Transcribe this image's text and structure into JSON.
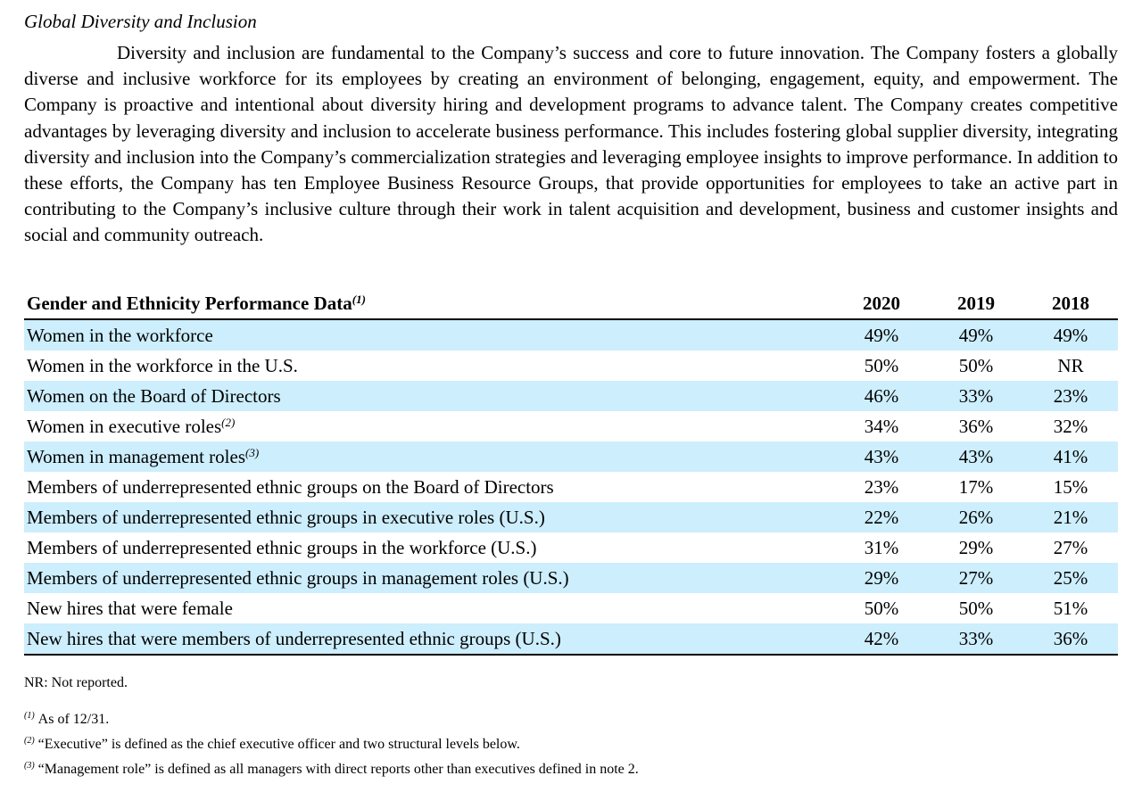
{
  "section_title": "Global Diversity and Inclusion",
  "paragraph": "Diversity and inclusion are fundamental to the Company’s success and core to future innovation. The Company fosters a globally diverse and inclusive workforce for its employees by creating an environment of belonging, engagement, equity, and empowerment. The Company is proactive and intentional about diversity hiring and development programs to advance talent. The Company creates competitive advantages by leveraging diversity and inclusion to accelerate business performance. This includes fostering global supplier diversity, integrating diversity and inclusion into the Company’s commercialization strategies and leveraging employee insights to improve performance. In addition to these efforts, the Company has ten Employee Business Resource Groups, that provide opportunities for employees to take an active part in contributing to the Company’s inclusive culture through their work in talent acquisition and development, business and customer insights and social and community outreach.",
  "table": {
    "header": {
      "label": "Gender and Ethnicity Performance Data",
      "footnote": "(1)",
      "years": [
        "2020",
        "2019",
        "2018"
      ]
    },
    "rows": [
      {
        "label": "Women in the workforce",
        "footnote": "",
        "values": [
          "49%",
          "49%",
          "49%"
        ]
      },
      {
        "label": "Women in the workforce in the U.S.",
        "footnote": "",
        "values": [
          "50%",
          "50%",
          "NR"
        ]
      },
      {
        "label": "Women on the Board of Directors",
        "footnote": "",
        "values": [
          "46%",
          "33%",
          "23%"
        ]
      },
      {
        "label": "Women in executive roles",
        "footnote": "(2)",
        "values": [
          "34%",
          "36%",
          "32%"
        ]
      },
      {
        "label": "Women in management roles",
        "footnote": "(3)",
        "values": [
          "43%",
          "43%",
          "41%"
        ]
      },
      {
        "label": "Members of underrepresented ethnic groups on the Board of Directors",
        "footnote": "",
        "values": [
          "23%",
          "17%",
          "15%"
        ]
      },
      {
        "label": "Members of underrepresented ethnic groups in executive roles (U.S.)",
        "footnote": "",
        "values": [
          "22%",
          "26%",
          "21%"
        ]
      },
      {
        "label": "Members of underrepresented ethnic groups in the workforce (U.S.)",
        "footnote": "",
        "values": [
          "31%",
          "29%",
          "27%"
        ]
      },
      {
        "label": "Members of underrepresented ethnic groups in management roles (U.S.)",
        "footnote": "",
        "values": [
          "29%",
          "27%",
          "25%"
        ]
      },
      {
        "label": "New hires that were female",
        "footnote": "",
        "values": [
          "50%",
          "50%",
          "51%"
        ]
      },
      {
        "label": "New hires that were members of underrepresented ethnic groups (U.S.)",
        "footnote": "",
        "values": [
          "42%",
          "33%",
          "36%"
        ]
      }
    ],
    "shade_color": "#cdeefc"
  },
  "notes": {
    "nr": "NR: Not reported.",
    "footnotes": [
      {
        "mark": "(1)",
        "text": "As of 12/31."
      },
      {
        "mark": "(2)",
        "text": "“Executive” is defined as the chief executive officer and two structural levels below."
      },
      {
        "mark": "(3)",
        "text": "“Management role” is defined as all managers with direct reports other than executives defined in note 2."
      }
    ]
  }
}
